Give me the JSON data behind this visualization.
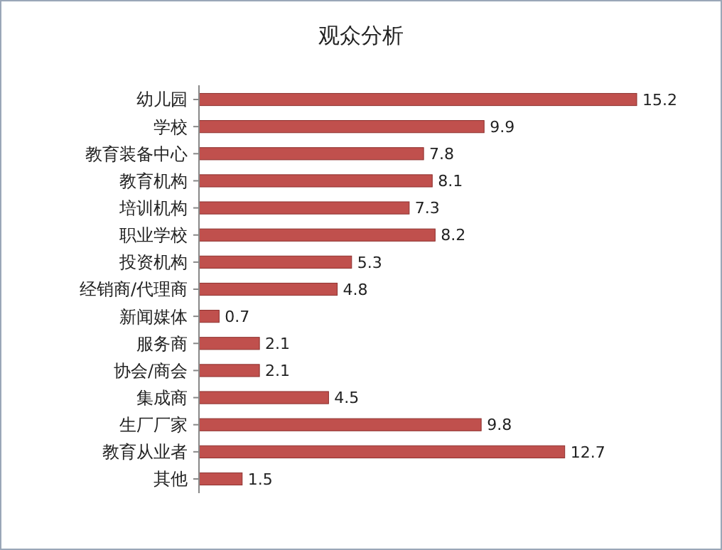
{
  "chart_data": {
    "type": "bar",
    "title": "观众分析",
    "orientation": "horizontal",
    "data_labels": true,
    "color": "#c0504d",
    "categories": [
      "幼儿园",
      "学校",
      "教育装备中心",
      "教育机构",
      "培训机构",
      "职业学校",
      "投资机构",
      "经销商/代理商",
      "新闻媒体",
      "服务商",
      "协会/商会",
      "集成商",
      "生厂厂家",
      "教育从业者",
      "其他"
    ],
    "values": [
      15.2,
      9.9,
      7.8,
      8.1,
      7.3,
      8.2,
      5.3,
      4.8,
      0.7,
      2.1,
      2.1,
      4.5,
      9.8,
      12.7,
      1.5
    ]
  }
}
